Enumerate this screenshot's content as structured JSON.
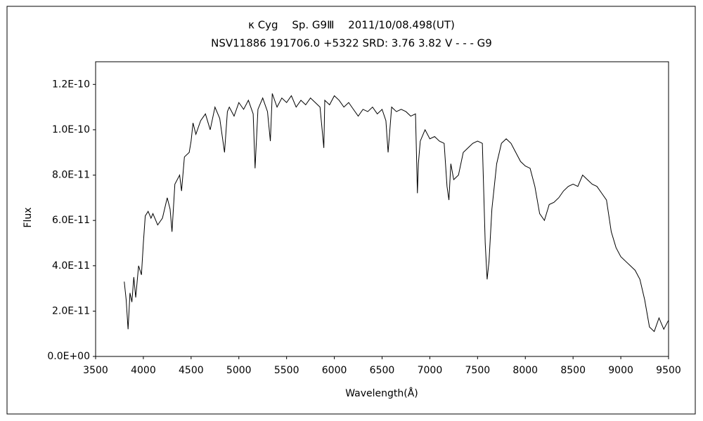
{
  "chart_data": {
    "type": "line",
    "title": "κ Cyg　 Sp. G9Ⅲ　 2011/10/08.498(UT)",
    "subtitle": "NSV11886 191706.0 +5322 SRD: 3.76 3.82 V - - - G9",
    "x_label": "Wavelength(Å)",
    "y_label": "Flux",
    "color": "#000000",
    "xlim": [
      3500,
      9500
    ],
    "xticks": [
      3500,
      4000,
      4500,
      5000,
      5500,
      6000,
      6500,
      7000,
      7500,
      8000,
      8500,
      9000,
      9500
    ],
    "ylim": [
      0,
      1.3e-10
    ],
    "yticks": [
      {
        "value": 0,
        "label": "0.0E+00"
      },
      {
        "value": 2e-11,
        "label": "2.0E-11"
      },
      {
        "value": 4e-11,
        "label": "4.0E-11"
      },
      {
        "value": 6e-11,
        "label": "6.0E-11"
      },
      {
        "value": 8e-11,
        "label": "8.0E-11"
      },
      {
        "value": 1e-10,
        "label": "1.0E-10"
      },
      {
        "value": 1.2e-10,
        "label": "1.2E-10"
      }
    ],
    "x": [
      3800,
      3820,
      3840,
      3860,
      3880,
      3900,
      3920,
      3950,
      3980,
      4000,
      4020,
      4050,
      4080,
      4100,
      4150,
      4200,
      4250,
      4280,
      4300,
      4330,
      4380,
      4400,
      4430,
      4480,
      4500,
      4520,
      4550,
      4600,
      4650,
      4700,
      4750,
      4800,
      4850,
      4880,
      4900,
      4950,
      5000,
      5050,
      5100,
      5150,
      5170,
      5200,
      5250,
      5300,
      5330,
      5350,
      5400,
      5450,
      5500,
      5550,
      5600,
      5650,
      5700,
      5750,
      5800,
      5850,
      5890,
      5900,
      5950,
      6000,
      6050,
      6100,
      6150,
      6200,
      6250,
      6300,
      6350,
      6400,
      6450,
      6500,
      6540,
      6563,
      6600,
      6650,
      6700,
      6750,
      6800,
      6850,
      6870,
      6880,
      6900,
      6950,
      7000,
      7050,
      7100,
      7150,
      7180,
      7200,
      7220,
      7250,
      7300,
      7350,
      7400,
      7450,
      7500,
      7550,
      7580,
      7600,
      7620,
      7650,
      7700,
      7750,
      7800,
      7850,
      7900,
      7950,
      8000,
      8050,
      8100,
      8150,
      8200,
      8250,
      8300,
      8350,
      8400,
      8450,
      8500,
      8550,
      8600,
      8650,
      8700,
      8750,
      8800,
      8850,
      8900,
      8950,
      9000,
      9050,
      9100,
      9150,
      9200,
      9250,
      9300,
      9350,
      9400,
      9450,
      9500
    ],
    "values": [
      3.3e-11,
      2.5e-11,
      1.2e-11,
      2.8e-11,
      2.4e-11,
      3.5e-11,
      2.6e-11,
      4e-11,
      3.6e-11,
      5e-11,
      6.2e-11,
      6.4e-11,
      6.1e-11,
      6.3e-11,
      5.8e-11,
      6.1e-11,
      7e-11,
      6.5e-11,
      5.5e-11,
      7.6e-11,
      8e-11,
      7.3e-11,
      8.8e-11,
      9e-11,
      9.5e-11,
      1.03e-10,
      9.8e-11,
      1.04e-10,
      1.07e-10,
      1e-10,
      1.1e-10,
      1.05e-10,
      9e-11,
      1.08e-10,
      1.1e-10,
      1.06e-10,
      1.12e-10,
      1.09e-10,
      1.13e-10,
      1.07e-10,
      8.3e-11,
      1.09e-10,
      1.14e-10,
      1.08e-10,
      9.5e-11,
      1.16e-10,
      1.1e-10,
      1.14e-10,
      1.12e-10,
      1.15e-10,
      1.1e-10,
      1.13e-10,
      1.11e-10,
      1.14e-10,
      1.12e-10,
      1.1e-10,
      9.2e-11,
      1.13e-10,
      1.11e-10,
      1.15e-10,
      1.13e-10,
      1.1e-10,
      1.12e-10,
      1.09e-10,
      1.06e-10,
      1.09e-10,
      1.08e-10,
      1.1e-10,
      1.07e-10,
      1.09e-10,
      1.04e-10,
      9e-11,
      1.1e-10,
      1.08e-10,
      1.09e-10,
      1.08e-10,
      1.06e-10,
      1.07e-10,
      7.2e-11,
      8.5e-11,
      9.5e-11,
      1e-10,
      9.6e-11,
      9.7e-11,
      9.5e-11,
      9.4e-11,
      7.5e-11,
      6.9e-11,
      8.5e-11,
      7.8e-11,
      8e-11,
      9e-11,
      9.2e-11,
      9.4e-11,
      9.5e-11,
      9.4e-11,
      5e-11,
      3.4e-11,
      4.2e-11,
      6.5e-11,
      8.5e-11,
      9.4e-11,
      9.6e-11,
      9.4e-11,
      9e-11,
      8.6e-11,
      8.4e-11,
      8.3e-11,
      7.5e-11,
      6.3e-11,
      6e-11,
      6.7e-11,
      6.8e-11,
      7e-11,
      7.3e-11,
      7.5e-11,
      7.6e-11,
      7.5e-11,
      8e-11,
      7.8e-11,
      7.6e-11,
      7.5e-11,
      7.2e-11,
      6.9e-11,
      5.5e-11,
      4.8e-11,
      4.4e-11,
      4.2e-11,
      4e-11,
      3.8e-11,
      3.4e-11,
      2.5e-11,
      1.3e-11,
      1.1e-11,
      1.7e-11,
      1.2e-11,
      1.6e-11
    ]
  }
}
